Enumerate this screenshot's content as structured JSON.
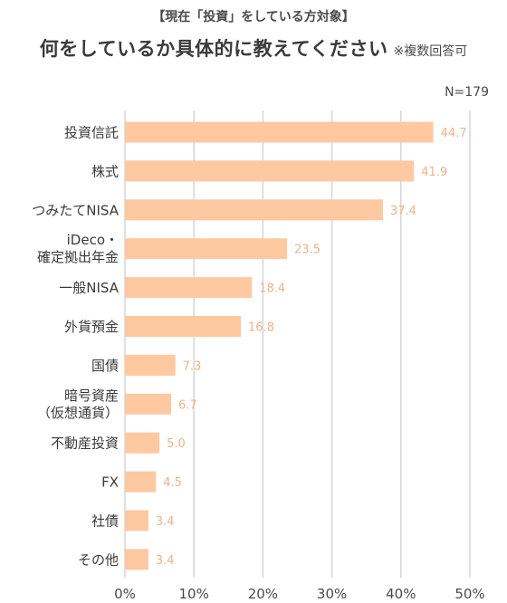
{
  "header": {
    "subtitle": "【現在「投資」をしている方対象】",
    "title": "何をしているか具体的に教えてください",
    "note": "※複数回答可",
    "sample": "N=179"
  },
  "colors": {
    "bar": "#fec8a1",
    "value_label": "#f3b184",
    "grid": "#d6d6d6"
  },
  "chart_data": {
    "type": "bar",
    "orientation": "horizontal",
    "title": "何をしているか具体的に教えてください",
    "categories": [
      [
        "投資信託"
      ],
      [
        "株式"
      ],
      [
        "つみたてNISA"
      ],
      [
        "iDeco・",
        "確定拠出年金"
      ],
      [
        "一般NISA"
      ],
      [
        "外貨預金"
      ],
      [
        "国債"
      ],
      [
        "暗号資産",
        "（仮想通貨）"
      ],
      [
        "不動産投資"
      ],
      [
        "FX"
      ],
      [
        "社債"
      ],
      [
        "その他"
      ]
    ],
    "values": [
      44.7,
      41.9,
      37.4,
      23.5,
      18.4,
      16.8,
      7.3,
      6.7,
      5.0,
      4.5,
      3.4,
      3.4
    ],
    "value_labels": [
      "44.7",
      "41.9",
      "37.4",
      "23.5",
      "18.4",
      "16.8",
      "7.3",
      "6.7",
      "5.0",
      "4.5",
      "3.4",
      "3.4"
    ],
    "xlim": [
      0,
      50
    ],
    "x_ticks": [
      0,
      10,
      20,
      30,
      40,
      50
    ],
    "x_tick_labels": [
      "0%",
      "10%",
      "20%",
      "30%",
      "40%",
      "50%"
    ],
    "grid": true,
    "legend": "none"
  }
}
